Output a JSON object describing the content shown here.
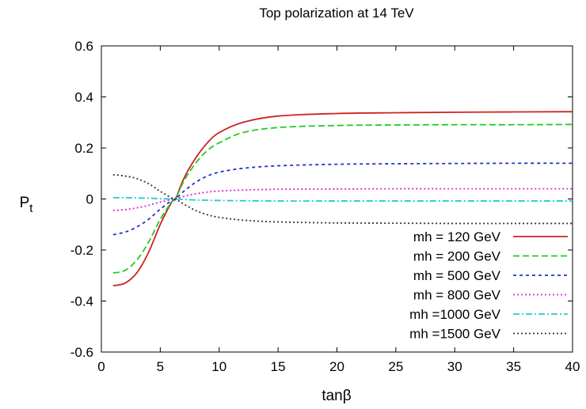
{
  "chart_data": {
    "type": "line",
    "title": "Top polarization at 14 TeV",
    "xlabel": "tanβ",
    "ylabel_main": "P",
    "ylabel_sub": "t",
    "xlim": [
      0,
      40
    ],
    "ylim": [
      -0.6,
      0.6
    ],
    "xticks": [
      "0",
      "5",
      "10",
      "15",
      "20",
      "25",
      "30",
      "35",
      "40"
    ],
    "yticks": [
      "-0.6",
      "-0.4",
      "-0.2",
      "0",
      "0.2",
      "0.4",
      "0.6"
    ],
    "grid": false,
    "legend_position": "bottom-right",
    "x": [
      1,
      2,
      3,
      4,
      5,
      6,
      6.3,
      7,
      8,
      9,
      10,
      12,
      15,
      20,
      25,
      30,
      35,
      40
    ],
    "series": [
      {
        "name": "mh =  120 GeV",
        "color": "#cc2222",
        "dash": "solid",
        "values": [
          -0.34,
          -0.33,
          -0.29,
          -0.21,
          -0.1,
          -0.01,
          0.0,
          0.08,
          0.16,
          0.22,
          0.26,
          0.3,
          0.325,
          0.335,
          0.338,
          0.34,
          0.341,
          0.342
        ]
      },
      {
        "name": "mh =  200 GeV",
        "color": "#22cc22",
        "dash": "dashed",
        "values": [
          -0.29,
          -0.28,
          -0.24,
          -0.17,
          -0.08,
          -0.01,
          0.0,
          0.07,
          0.14,
          0.19,
          0.22,
          0.26,
          0.28,
          0.288,
          0.29,
          0.291,
          0.291,
          0.292
        ]
      },
      {
        "name": "mh =  500 GeV",
        "color": "#2233cc",
        "dash": "short-dashed",
        "values": [
          -0.14,
          -0.13,
          -0.11,
          -0.08,
          -0.04,
          -0.005,
          0.0,
          0.03,
          0.065,
          0.09,
          0.105,
          0.12,
          0.13,
          0.136,
          0.138,
          0.139,
          0.14,
          0.14
        ]
      },
      {
        "name": "mh =  800 GeV",
        "color": "#dd22dd",
        "dash": "dotted",
        "values": [
          -0.045,
          -0.042,
          -0.035,
          -0.025,
          -0.012,
          -0.002,
          0.0,
          0.01,
          0.02,
          0.027,
          0.031,
          0.035,
          0.038,
          0.039,
          0.04,
          0.04,
          0.04,
          0.04
        ]
      },
      {
        "name": "mh =1000 GeV",
        "color": "#22cccc",
        "dash": "dash-dot",
        "values": [
          0.005,
          0.005,
          0.004,
          0.003,
          0.001,
          0.0,
          0.0,
          -0.002,
          -0.004,
          -0.005,
          -0.006,
          -0.007,
          -0.008,
          -0.008,
          -0.008,
          -0.008,
          -0.008,
          -0.008
        ]
      },
      {
        "name": "mh =1500 GeV",
        "color": "#333333",
        "dash": "dotted",
        "values": [
          0.095,
          0.09,
          0.08,
          0.06,
          0.03,
          0.003,
          0.0,
          -0.02,
          -0.045,
          -0.062,
          -0.072,
          -0.083,
          -0.09,
          -0.094,
          -0.095,
          -0.096,
          -0.096,
          -0.096
        ]
      }
    ]
  }
}
